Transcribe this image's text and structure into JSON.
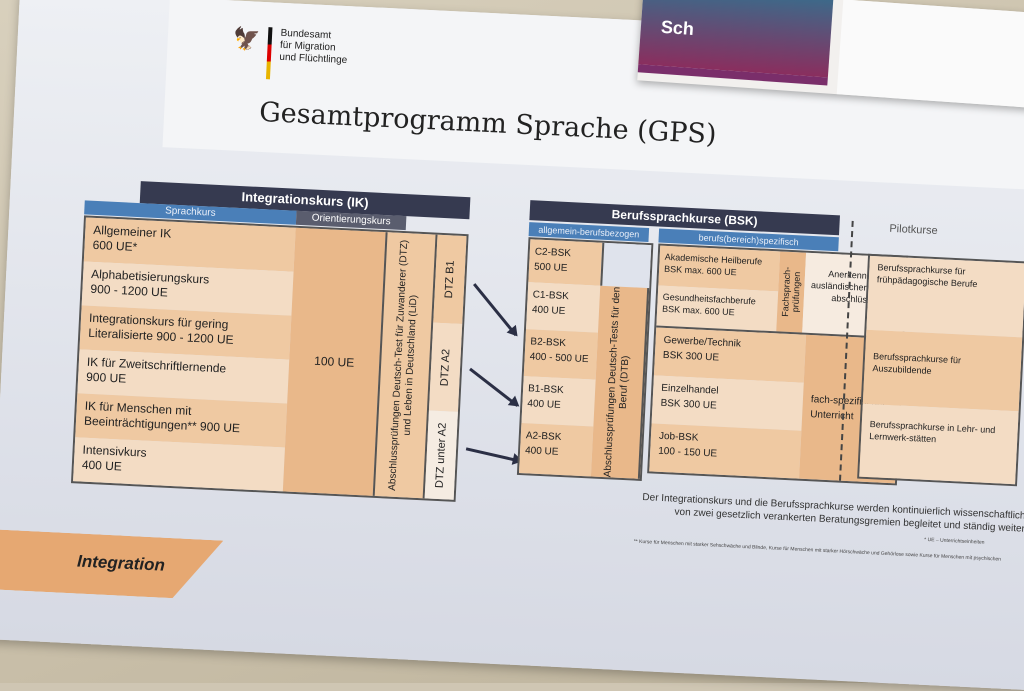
{
  "logo": {
    "org_lines": [
      "Bundesamt",
      "für Migration",
      "und Flüchtlinge"
    ]
  },
  "title": "Gesamtprogramm Sprache (GPS)",
  "ik": {
    "header": "Integrationskurs (IK)",
    "sub_sprachkurs": "Sprachkurs",
    "sub_orientierung": "Orientierungskurs",
    "courses": [
      {
        "name": "Allgemeiner IK",
        "hours": "600 UE*"
      },
      {
        "name": "Alphabetisierungskurs",
        "hours": "900 - 1200 UE"
      },
      {
        "name": "Integrationskurs für gering",
        "hours": "Literalisierte 900 - 1200 UE"
      },
      {
        "name": "IK für Zweitschriftlernende",
        "hours": "900 UE"
      },
      {
        "name": "IK für Menschen mit",
        "hours": "Beeinträchtigungen** 900 UE"
      },
      {
        "name": "Intensivkurs",
        "hours": "400 UE"
      }
    ],
    "orientation_hours": "100 UE",
    "exam": "Abschlussprüfungen Deutsch-Test für Zuwanderer (DTZ) und Leben in Deutschland (LiD)",
    "levels": [
      "DTZ B1",
      "DTZ A2",
      "DTZ unter A2"
    ]
  },
  "bsk": {
    "header": "Berufssprachkurse (BSK)",
    "sub_general": "allgemein-berufsbezogen",
    "sub_specific": "berufs(bereich)spezifisch",
    "general": [
      {
        "name": "C2-BSK",
        "hours": "500 UE"
      },
      {
        "name": "C1-BSK",
        "hours": "400 UE"
      },
      {
        "name": "B2-BSK",
        "hours": "400 - 500 UE"
      },
      {
        "name": "B1-BSK",
        "hours": "400 UE"
      },
      {
        "name": "A2-BSK",
        "hours": "400 UE"
      }
    ],
    "general_exam": "Abschlussprüfungen Deutsch-Tests für den Beruf (DTB)",
    "specific_top": [
      {
        "name": "Akademische Heilberufe",
        "hours": "BSK max. 600 UE"
      },
      {
        "name": "Gesundheitsfachberufe",
        "hours": "BSK max. 600 UE"
      }
    ],
    "fachsprach": "Fachsprach-prüfungen",
    "anerkennung": "Anerkennung ausländischer Berufs-abschlüsse",
    "specific_bottom": [
      {
        "name": "Gewerbe/Technik",
        "hours": "BSK 300 UE"
      },
      {
        "name": "Einzelhandel",
        "hours": "BSK 300 UE"
      },
      {
        "name": "Job-BSK",
        "hours": "100 - 150 UE"
      }
    ],
    "fachunterricht": "fach-spezifischer Unterricht"
  },
  "pilot": {
    "header": "Pilotkurse",
    "courses": [
      "Berufssprachkurse für frühpädagogische Berufe",
      "Berufssprachkurse für Auszubildende",
      "Berufssprachkurse in Lehr- und Lernwerk-stätten"
    ]
  },
  "note_line1": "Der Integrationskurs und die Berufssprachkurse werden kontinuierlich wissenschaftlich",
  "note_line2": "von zwei gesetzlich verankerten Beratungsgremien begleitet und ständig weiter",
  "footnote1": "* UE – Unterrichtseinheiten",
  "footnote2": "** Kurse für Menschen mit starker Sehschwäche und Blinde, Kurse für Menschen mit starker Hörschwäche und Gehörlose sowie Kurse für Menschen mit psychischen",
  "integration_label": "Integration",
  "magazine_text": "Sch"
}
